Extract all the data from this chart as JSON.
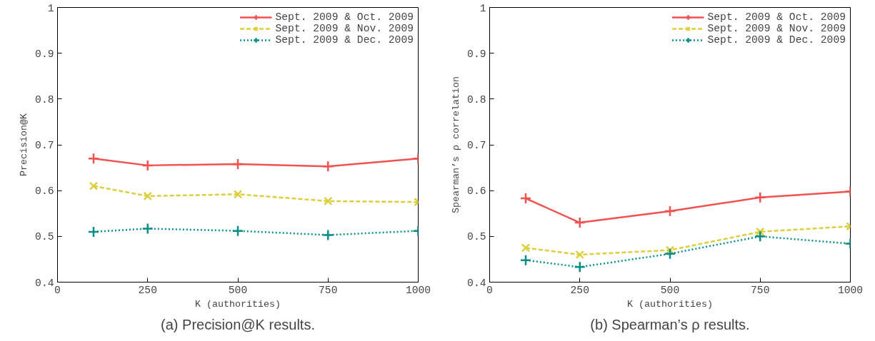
{
  "chart_data": [
    {
      "type": "line",
      "title": "(a) Precision@K results.",
      "xlabel": "K (authorities)",
      "ylabel": "Precision@K",
      "x": [
        100,
        250,
        500,
        750,
        1000
      ],
      "xlim": [
        0,
        1000
      ],
      "xticks": [
        0,
        250,
        500,
        750,
        1000
      ],
      "ylim": [
        0.4,
        1
      ],
      "yticks": [
        0.4,
        0.5,
        0.6,
        0.7,
        0.8,
        0.9,
        1
      ],
      "grid": false,
      "legend": "top right",
      "series": [
        {
          "name": "Sept. 2009 & Oct. 2009",
          "color": "#f0524f",
          "marker": "cross",
          "line_style": "solid",
          "values": [
            0.67,
            0.655,
            0.658,
            0.653,
            0.67
          ]
        },
        {
          "name": "Sept. 2009 & Nov. 2009",
          "color": "#dccf3e",
          "marker": "x",
          "line_style": "dashed",
          "values": [
            0.61,
            0.588,
            0.592,
            0.577,
            0.575
          ]
        },
        {
          "name": "Sept. 2009 & Dec. 2009",
          "color": "#0b8e8a",
          "marker": "cross",
          "line_style": "dotted",
          "values": [
            0.51,
            0.517,
            0.512,
            0.503,
            0.512
          ]
        }
      ]
    },
    {
      "type": "line",
      "title": "(b) Spearman’s ρ results.",
      "xlabel": "K (authorities)",
      "ylabel": "Spearman’s ρ correlation",
      "x": [
        100,
        250,
        500,
        750,
        1000
      ],
      "xlim": [
        0,
        1000
      ],
      "xticks": [
        0,
        250,
        500,
        750,
        1000
      ],
      "ylim": [
        0.4,
        1
      ],
      "yticks": [
        0.4,
        0.5,
        0.6,
        0.7,
        0.8,
        0.9,
        1
      ],
      "grid": false,
      "legend": "top right",
      "series": [
        {
          "name": "Sept. 2009 & Oct. 2009",
          "color": "#f0524f",
          "marker": "cross",
          "line_style": "solid",
          "values": [
            0.583,
            0.53,
            0.555,
            0.585,
            0.598
          ]
        },
        {
          "name": "Sept. 2009 & Nov. 2009",
          "color": "#dccf3e",
          "marker": "x",
          "line_style": "dashed",
          "values": [
            0.475,
            0.46,
            0.47,
            0.51,
            0.522
          ]
        },
        {
          "name": "Sept. 2009 & Dec. 2009",
          "color": "#0b8e8a",
          "marker": "cross",
          "line_style": "dotted",
          "values": [
            0.448,
            0.433,
            0.462,
            0.5,
            0.484
          ]
        }
      ]
    }
  ]
}
